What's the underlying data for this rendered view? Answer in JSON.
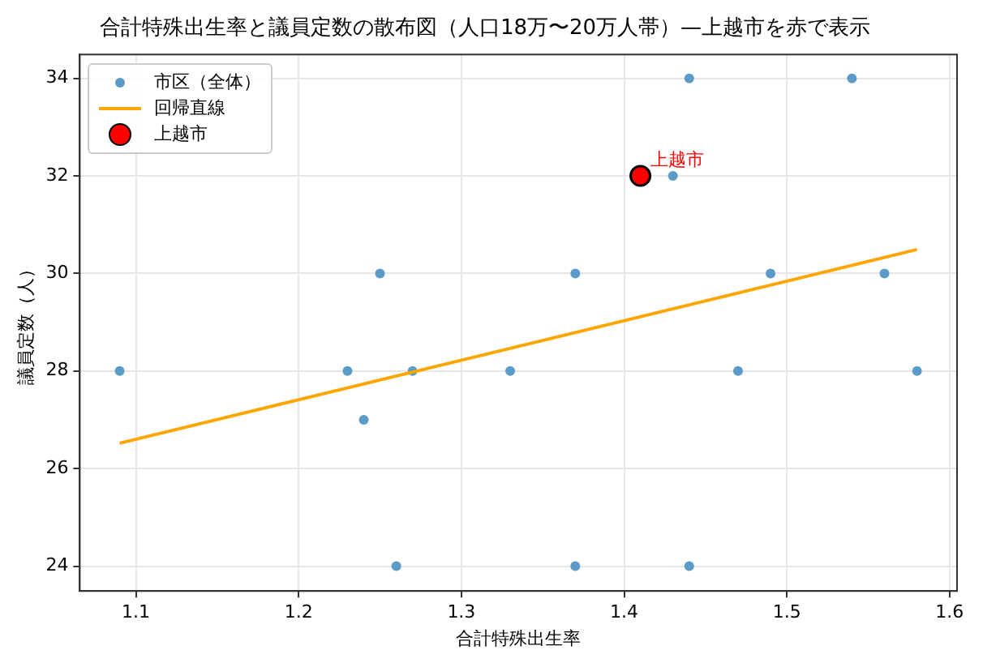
{
  "chart_data": {
    "type": "scatter",
    "title": "合計特殊出生率と議員定数の散布図（人口18万〜20万人帯）—上越市を赤で表示",
    "xlabel": "合計特殊出生率",
    "ylabel": "議員定数（人）",
    "series": [
      {
        "name": "市区（全体）",
        "type": "scatter",
        "marker": "circle",
        "color": "#5b9bc8",
        "x": [
          1.09,
          1.23,
          1.24,
          1.25,
          1.26,
          1.27,
          1.33,
          1.37,
          1.37,
          1.43,
          1.44,
          1.44,
          1.47,
          1.49,
          1.54,
          1.56,
          1.58
        ],
        "values": [
          28,
          28,
          27,
          30,
          24,
          28,
          28,
          30,
          24,
          32,
          34,
          24,
          28,
          30,
          34,
          30,
          28
        ]
      },
      {
        "name": "回帰直線",
        "type": "line",
        "marker": "none",
        "color": "#ffa500",
        "x": [
          1.09,
          1.58
        ],
        "values": [
          26.52,
          30.49
        ]
      },
      {
        "name": "上越市",
        "type": "scatter",
        "marker": "circle",
        "color": "#ff0000",
        "x": [
          1.41
        ],
        "values": [
          32
        ]
      }
    ],
    "annotations": [
      {
        "text": "上越市",
        "x": 1.41,
        "y": 32
      }
    ],
    "xlim": [
      1.0655,
      1.6046
    ],
    "ylim": [
      23.49,
      34.49
    ],
    "xticks": [
      1.1,
      1.2,
      1.3,
      1.4,
      1.5,
      1.6
    ],
    "yticks": [
      24,
      26,
      28,
      30,
      32,
      34
    ],
    "grid": true,
    "legend": "top left",
    "line_style": "solid"
  }
}
